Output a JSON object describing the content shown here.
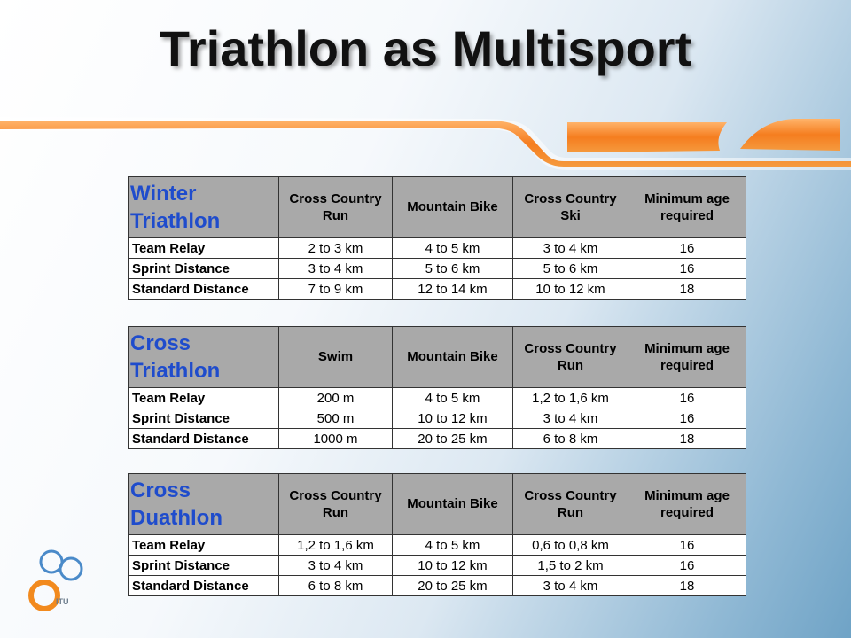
{
  "title": "Triathlon as Multisport",
  "tables": [
    {
      "title_line1": "Winter",
      "title_line2": "Triathlon",
      "columns": [
        "Cross Country Run",
        "Mountain Bike",
        "Cross Country Ski",
        "Minimum age required"
      ],
      "rows": [
        {
          "label": "Team Relay",
          "cells": [
            "2 to 3 km",
            "4 to 5 km",
            "3 to 4 km",
            "16"
          ]
        },
        {
          "label": "Sprint Distance",
          "cells": [
            "3 to 4 km",
            "5 to 6 km",
            "5 to 6 km",
            "16"
          ]
        },
        {
          "label": "Standard Distance",
          "cells": [
            "7 to 9 km",
            "12 to 14 km",
            "10 to 12 km",
            "18"
          ]
        }
      ]
    },
    {
      "title_line1": "Cross",
      "title_line2": "Triathlon",
      "columns": [
        "Swim",
        "Mountain Bike",
        "Cross Country Run",
        "Minimum age required"
      ],
      "rows": [
        {
          "label": "Team Relay",
          "cells": [
            "200 m",
            "4 to 5 km",
            "1,2 to 1,6 km",
            "16"
          ]
        },
        {
          "label": "Sprint Distance",
          "cells": [
            "500 m",
            "10 to 12 km",
            "3 to 4 km",
            "16"
          ]
        },
        {
          "label": "Standard Distance",
          "cells": [
            "1000 m",
            "20 to 25 km",
            "6 to 8 km",
            "18"
          ]
        }
      ]
    },
    {
      "title_line1": "Cross",
      "title_line2": "Duathlon",
      "columns": [
        "Cross Country Run",
        "Mountain Bike",
        "Cross Country Run",
        "Minimum age required"
      ],
      "rows": [
        {
          "label": "Team Relay",
          "cells": [
            "1,2 to 1,6 km",
            "4 to 5 km",
            "0,6 to 0,8 km",
            "16"
          ]
        },
        {
          "label": "Sprint Distance",
          "cells": [
            "3 to 4 km",
            "10 to 12 km",
            "1,5 to 2 km",
            "16"
          ]
        },
        {
          "label": "Standard Distance",
          "cells": [
            "6 to 8 km",
            "20 to 25 km",
            "3 to 4 km",
            "18"
          ]
        }
      ]
    }
  ],
  "logo": {
    "text": "ITU",
    "icon": "itu-logo-icon"
  },
  "colors": {
    "header_bg": "#a9a9a9",
    "table_title": "#1f4ccc",
    "accent_orange": "#f57d1f",
    "logo_blue": "#4a8ac9",
    "logo_orange": "#f28a1e"
  }
}
